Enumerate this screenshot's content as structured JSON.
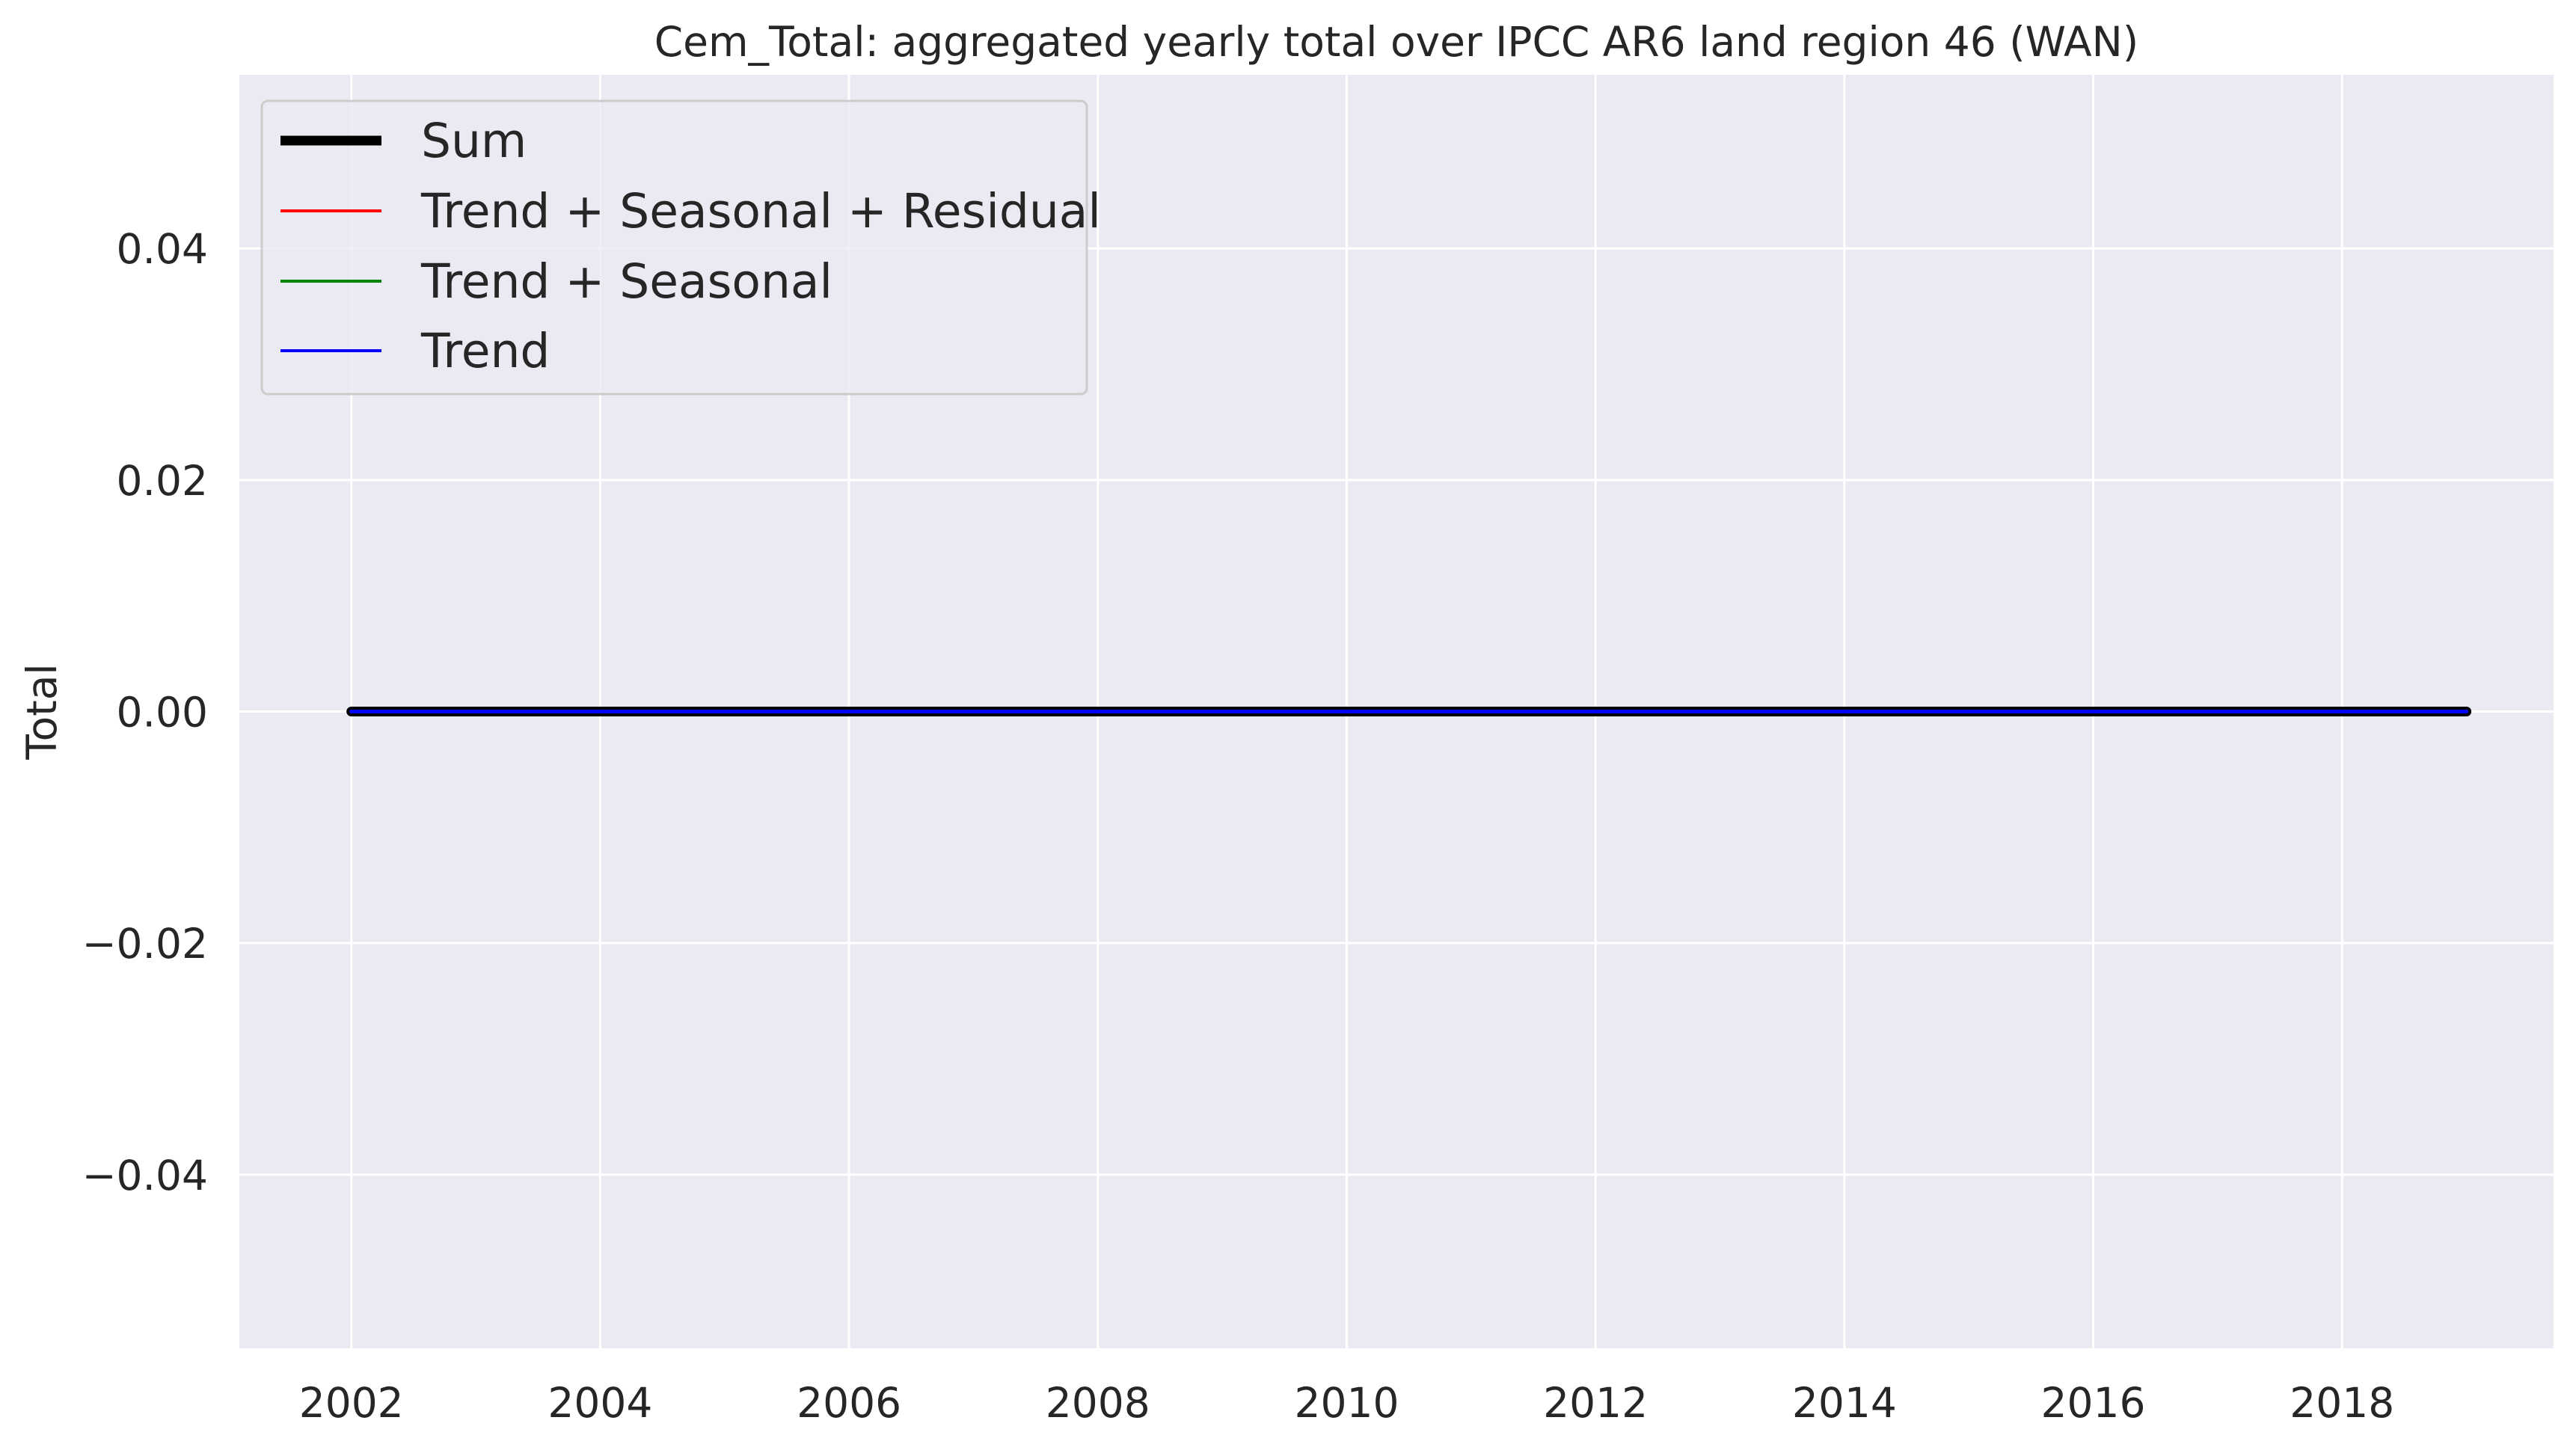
{
  "chart_data": {
    "type": "line",
    "title": "Cem_Total: aggregated yearly total over IPCC AR6 land region 46 (WAN)",
    "xlabel": "",
    "ylabel": "Total",
    "xlim": [
      2001.1,
      2019.7
    ],
    "ylim": [
      -0.055,
      0.055
    ],
    "x_ticks": [
      2002,
      2004,
      2006,
      2008,
      2010,
      2012,
      2014,
      2016,
      2018
    ],
    "x_tick_labels": [
      "2002",
      "2004",
      "2006",
      "2008",
      "2010",
      "2012",
      "2014",
      "2016",
      "2018"
    ],
    "y_ticks": [
      -0.04,
      -0.02,
      0.0,
      0.02,
      0.04
    ],
    "y_tick_labels": [
      "−0.04",
      "−0.02",
      "0.00",
      "0.02",
      "0.04"
    ],
    "grid": true,
    "legend_position": "top-left",
    "background_color": "#eaeaf2",
    "grid_color": "#ffffff",
    "series": [
      {
        "name": "Sum",
        "color": "#000000",
        "x": [
          2002,
          2003,
          2004,
          2005,
          2006,
          2007,
          2008,
          2009,
          2010,
          2011,
          2012,
          2013,
          2014,
          2015,
          2016,
          2017,
          2018,
          2019
        ],
        "values": [
          0,
          0,
          0,
          0,
          0,
          0,
          0,
          0,
          0,
          0,
          0,
          0,
          0,
          0,
          0,
          0,
          0,
          0
        ]
      },
      {
        "name": "Trend + Seasonal + Residual",
        "color": "#ff0000",
        "x": [
          2002,
          2003,
          2004,
          2005,
          2006,
          2007,
          2008,
          2009,
          2010,
          2011,
          2012,
          2013,
          2014,
          2015,
          2016,
          2017,
          2018,
          2019
        ],
        "values": [
          0,
          0,
          0,
          0,
          0,
          0,
          0,
          0,
          0,
          0,
          0,
          0,
          0,
          0,
          0,
          0,
          0,
          0
        ]
      },
      {
        "name": "Trend + Seasonal",
        "color": "#008000",
        "x": [
          2002,
          2003,
          2004,
          2005,
          2006,
          2007,
          2008,
          2009,
          2010,
          2011,
          2012,
          2013,
          2014,
          2015,
          2016,
          2017,
          2018,
          2019
        ],
        "values": [
          0,
          0,
          0,
          0,
          0,
          0,
          0,
          0,
          0,
          0,
          0,
          0,
          0,
          0,
          0,
          0,
          0,
          0
        ]
      },
      {
        "name": "Trend",
        "color": "#0000ff",
        "x": [
          2002,
          2003,
          2004,
          2005,
          2006,
          2007,
          2008,
          2009,
          2010,
          2011,
          2012,
          2013,
          2014,
          2015,
          2016,
          2017,
          2018,
          2019
        ],
        "values": [
          0,
          0,
          0,
          0,
          0,
          0,
          0,
          0,
          0,
          0,
          0,
          0,
          0,
          0,
          0,
          0,
          0,
          0
        ]
      }
    ]
  }
}
